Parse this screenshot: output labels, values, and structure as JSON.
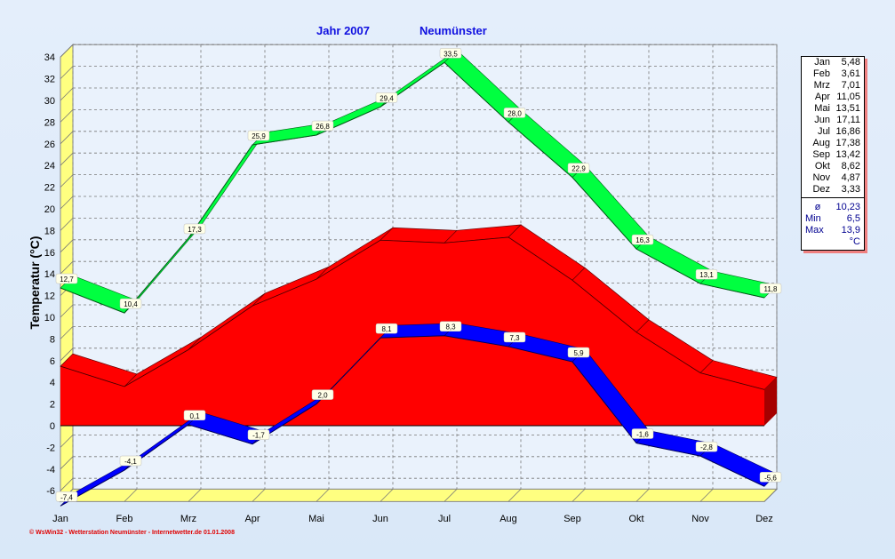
{
  "chart_data": {
    "type": "line",
    "title": "Jahr  2007",
    "subtitle": "Neumünster",
    "ylabel": "Temperatur  (°C)",
    "xlabel": "",
    "categories": [
      "Jan",
      "Feb",
      "Mrz",
      "Apr",
      "Mai",
      "Jun",
      "Jul",
      "Aug",
      "Sep",
      "Okt",
      "Nov",
      "Dez"
    ],
    "ylim": [
      -7,
      34
    ],
    "yticks": [
      -6,
      -4,
      -2,
      0,
      2,
      4,
      6,
      8,
      10,
      12,
      14,
      16,
      18,
      20,
      22,
      24,
      26,
      28,
      30,
      32,
      34
    ],
    "grid": true,
    "series": [
      {
        "name": "Max",
        "type": "ribbon",
        "color": "#00ff40",
        "values": [
          12.7,
          10.4,
          17.3,
          25.9,
          26.8,
          29.4,
          33.5,
          28.0,
          22.9,
          16.3,
          13.1,
          11.8
        ],
        "labels": [
          "12,7",
          "10,4",
          "17,3",
          "25,9",
          "26,8",
          "29,4",
          "33,5",
          "28,0",
          "22,9",
          "16,3",
          "13,1",
          "11,8"
        ]
      },
      {
        "name": "Mittel",
        "type": "area",
        "color": "#ff0000",
        "values": [
          5.48,
          3.61,
          7.01,
          11.05,
          13.51,
          17.11,
          16.86,
          17.38,
          13.42,
          8.62,
          4.87,
          3.33
        ]
      },
      {
        "name": "Min",
        "type": "ribbon",
        "color": "#0000ff",
        "values": [
          -7.4,
          -4.1,
          0.1,
          -1.7,
          2.0,
          8.1,
          8.3,
          7.3,
          5.9,
          -1.6,
          -2.8,
          -5.6
        ],
        "labels": [
          "-7,4",
          "-4,1",
          "0,1",
          "-1,7",
          "2,0",
          "8,1",
          "8,3",
          "7,3",
          "5,9",
          "-1,6",
          "-2,8",
          "-5,6"
        ]
      }
    ]
  },
  "header": {
    "year": "Jahr  2007",
    "station": "Neumünster"
  },
  "legend": {
    "rows": [
      {
        "m": "Jan",
        "v": "5,48"
      },
      {
        "m": "Feb",
        "v": "3,61"
      },
      {
        "m": "Mrz",
        "v": "7,01"
      },
      {
        "m": "Apr",
        "v": "11,05"
      },
      {
        "m": "Mai",
        "v": "13,51"
      },
      {
        "m": "Jun",
        "v": "17,11"
      },
      {
        "m": "Jul",
        "v": "16,86"
      },
      {
        "m": "Aug",
        "v": "17,38"
      },
      {
        "m": "Sep",
        "v": "13,42"
      },
      {
        "m": "Okt",
        "v": "8,62"
      },
      {
        "m": "Nov",
        "v": "4,87"
      },
      {
        "m": "Dez",
        "v": "3,33"
      }
    ],
    "avg_label": "ø",
    "avg": "10,23",
    "min_label": "Min",
    "min": "6,5",
    "max_label": "Max",
    "max": "13,9",
    "unit": "°C"
  },
  "footer": "© WsWin32 - Wetterstation Neumünster - Internetwetter.de  01.01.2008"
}
